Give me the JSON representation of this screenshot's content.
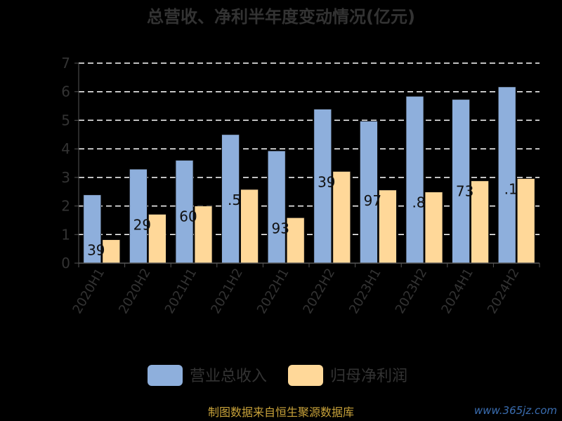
{
  "chart_data": {
    "type": "bar",
    "title": "总营收、净利半年度变动情况(亿元)",
    "categories": [
      "2020H1",
      "2020H2",
      "2021H1",
      "2021H2",
      "2022H1",
      "2022H2",
      "2023H1",
      "2023H2",
      "2024H1",
      "2024H2"
    ],
    "series": [
      {
        "name": "营业总收入",
        "color": "#8eafdc",
        "values": [
          2.39,
          3.29,
          3.6,
          4.5,
          3.93,
          5.39,
          4.97,
          5.84,
          5.73,
          6.17
        ]
      },
      {
        "name": "归母净利润",
        "color": "#ffd899",
        "values": [
          0.82,
          1.71,
          2.0,
          2.58,
          1.59,
          3.21,
          2.56,
          2.49,
          2.88,
          2.96
        ]
      }
    ],
    "data_labels": [
      "39",
      "29",
      "60",
      ".5",
      "93",
      "39",
      "97",
      ".8",
      "73",
      ".1"
    ],
    "yticks": [
      0,
      1,
      2,
      3,
      4,
      5,
      6,
      7
    ],
    "ylim": [
      0,
      7
    ],
    "grid": true,
    "legend_position": "bottom"
  },
  "footer": "制图数据来自恒生聚源数据库",
  "watermark": "www.365jz.com"
}
